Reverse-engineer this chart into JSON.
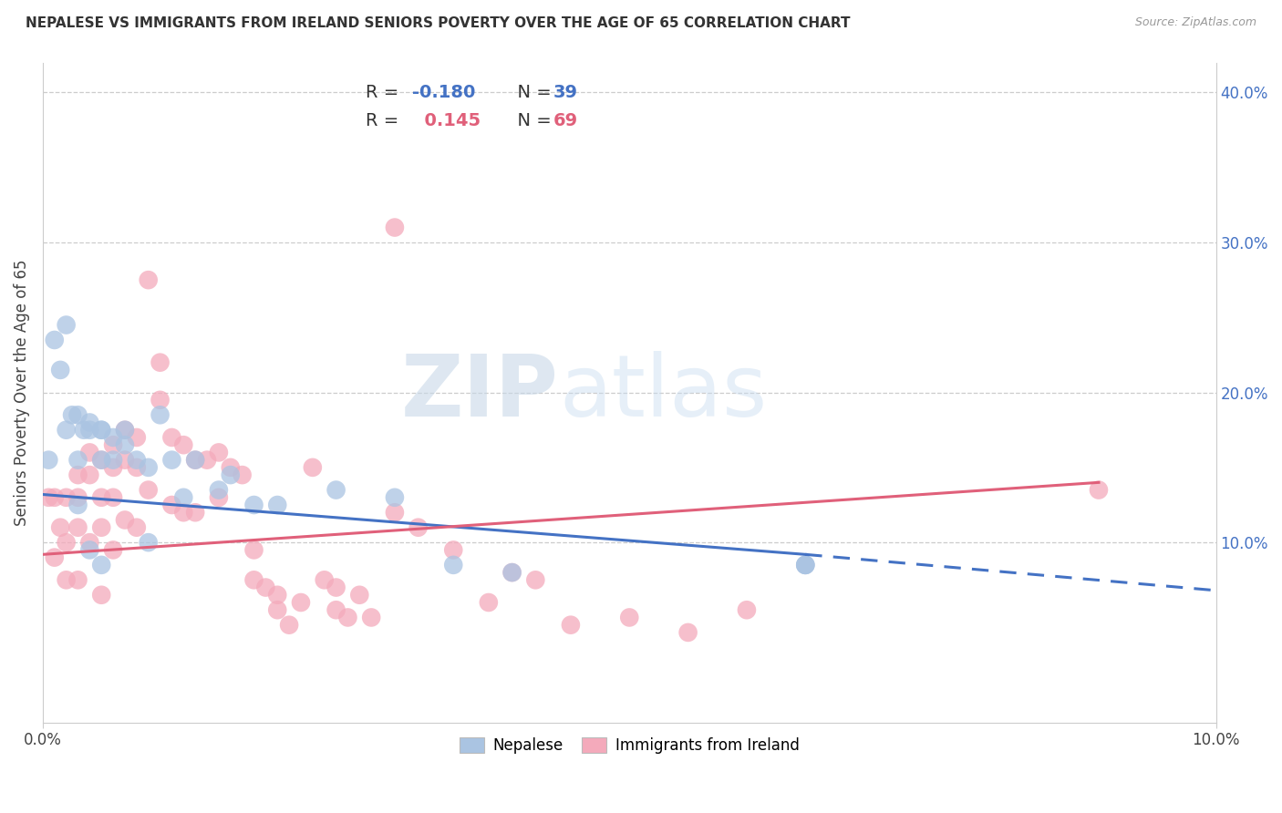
{
  "title": "NEPALESE VS IMMIGRANTS FROM IRELAND SENIORS POVERTY OVER THE AGE OF 65 CORRELATION CHART",
  "source": "Source: ZipAtlas.com",
  "ylabel": "Seniors Poverty Over the Age of 65",
  "xlim": [
    0.0,
    0.1
  ],
  "ylim": [
    -0.02,
    0.42
  ],
  "xticks": [
    0.0,
    0.1
  ],
  "yticks_right": [
    0.1,
    0.2,
    0.3,
    0.4
  ],
  "blue_R": -0.18,
  "blue_N": 39,
  "pink_R": 0.145,
  "pink_N": 69,
  "blue_color": "#aac4e2",
  "pink_color": "#f4aabb",
  "blue_line_color": "#4472c4",
  "pink_line_color": "#e0607a",
  "watermark_zip": "ZIP",
  "watermark_atlas": "atlas",
  "legend_label_blue": "Nepalese",
  "legend_label_pink": "Immigrants from Ireland",
  "blue_line_x0": 0.0,
  "blue_line_y0": 0.132,
  "blue_line_x1": 0.065,
  "blue_line_y1": 0.092,
  "blue_line_x1_dashed": 0.1,
  "blue_line_y1_dashed": 0.068,
  "pink_line_x0": 0.0,
  "pink_line_y0": 0.092,
  "pink_line_x1": 0.09,
  "pink_line_y1": 0.14,
  "nepalese_x": [
    0.0005,
    0.001,
    0.0015,
    0.002,
    0.002,
    0.0025,
    0.003,
    0.003,
    0.003,
    0.0035,
    0.004,
    0.004,
    0.004,
    0.005,
    0.005,
    0.005,
    0.005,
    0.006,
    0.006,
    0.007,
    0.007,
    0.008,
    0.009,
    0.009,
    0.01,
    0.011,
    0.012,
    0.013,
    0.015,
    0.016,
    0.018,
    0.02,
    0.025,
    0.03,
    0.035,
    0.04,
    0.065,
    0.065,
    0.065
  ],
  "nepalese_y": [
    0.155,
    0.235,
    0.215,
    0.175,
    0.245,
    0.185,
    0.185,
    0.155,
    0.125,
    0.175,
    0.18,
    0.175,
    0.095,
    0.175,
    0.155,
    0.085,
    0.175,
    0.17,
    0.155,
    0.175,
    0.165,
    0.155,
    0.15,
    0.1,
    0.185,
    0.155,
    0.13,
    0.155,
    0.135,
    0.145,
    0.125,
    0.125,
    0.135,
    0.13,
    0.085,
    0.08,
    0.085,
    0.085,
    0.085
  ],
  "ireland_x": [
    0.0005,
    0.001,
    0.001,
    0.0015,
    0.002,
    0.002,
    0.002,
    0.003,
    0.003,
    0.003,
    0.003,
    0.004,
    0.004,
    0.004,
    0.005,
    0.005,
    0.005,
    0.005,
    0.006,
    0.006,
    0.006,
    0.006,
    0.007,
    0.007,
    0.007,
    0.008,
    0.008,
    0.008,
    0.009,
    0.009,
    0.01,
    0.01,
    0.011,
    0.011,
    0.012,
    0.012,
    0.013,
    0.013,
    0.014,
    0.015,
    0.015,
    0.016,
    0.017,
    0.018,
    0.018,
    0.019,
    0.02,
    0.02,
    0.021,
    0.022,
    0.023,
    0.024,
    0.025,
    0.025,
    0.026,
    0.027,
    0.028,
    0.03,
    0.03,
    0.032,
    0.035,
    0.038,
    0.04,
    0.042,
    0.045,
    0.05,
    0.055,
    0.06,
    0.09
  ],
  "ireland_y": [
    0.13,
    0.13,
    0.09,
    0.11,
    0.13,
    0.1,
    0.075,
    0.145,
    0.13,
    0.11,
    0.075,
    0.16,
    0.145,
    0.1,
    0.155,
    0.13,
    0.11,
    0.065,
    0.165,
    0.15,
    0.13,
    0.095,
    0.175,
    0.155,
    0.115,
    0.17,
    0.15,
    0.11,
    0.275,
    0.135,
    0.22,
    0.195,
    0.17,
    0.125,
    0.165,
    0.12,
    0.155,
    0.12,
    0.155,
    0.16,
    0.13,
    0.15,
    0.145,
    0.095,
    0.075,
    0.07,
    0.065,
    0.055,
    0.045,
    0.06,
    0.15,
    0.075,
    0.07,
    0.055,
    0.05,
    0.065,
    0.05,
    0.31,
    0.12,
    0.11,
    0.095,
    0.06,
    0.08,
    0.075,
    0.045,
    0.05,
    0.04,
    0.055,
    0.135
  ]
}
